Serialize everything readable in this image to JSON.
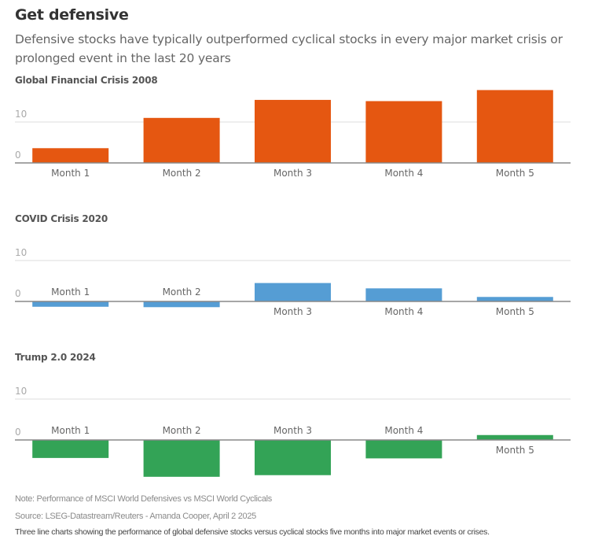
{
  "header": {
    "title": "Get defensive",
    "subtitle": "Defensive stocks have typically outperformed cyclical stocks in every major market crisis or prolonged event in the last 20 years"
  },
  "footer": {
    "note": "Note: Performance of MSCI World Defensives vs MSCI World Cyclicals",
    "source": "Source: LSEG-Datastream/Reuters - Amanda Cooper, April 2 2025",
    "description": "Three line charts showing the performance of global defensive stocks versus cyclical stocks five months into major market events or crises."
  },
  "chart_data": [
    {
      "type": "bar",
      "title": "Global Financial Crisis 2008",
      "categories": [
        "Month 1",
        "Month 2",
        "Month 3",
        "Month 4",
        "Month 5"
      ],
      "values": [
        3.6,
        11.0,
        15.4,
        15.1,
        17.8
      ],
      "color": "#e55711",
      "yticks": [
        0,
        10
      ],
      "ylim": [
        0,
        18
      ],
      "grid": true,
      "xlabel": "",
      "ylabel": ""
    },
    {
      "type": "bar",
      "title": "COVID Crisis 2020",
      "categories": [
        "Month 1",
        "Month 2",
        "Month 3",
        "Month 4",
        "Month 5"
      ],
      "values": [
        -1.3,
        -1.4,
        4.5,
        3.2,
        1.1
      ],
      "color": "#559dd4",
      "yticks": [
        0,
        10
      ],
      "ylim": [
        -2,
        12
      ],
      "grid": true,
      "xlabel": "",
      "ylabel": ""
    },
    {
      "type": "bar",
      "title": "Trump 2.0 2024",
      "categories": [
        "Month 1",
        "Month 2",
        "Month 3",
        "Month 4",
        "Month 5"
      ],
      "values": [
        -4.4,
        -9.0,
        -8.6,
        -4.5,
        1.2
      ],
      "color": "#33a356",
      "yticks": [
        0,
        10
      ],
      "ylim": [
        -9,
        12
      ],
      "grid": true,
      "xlabel": "",
      "ylabel": ""
    }
  ]
}
